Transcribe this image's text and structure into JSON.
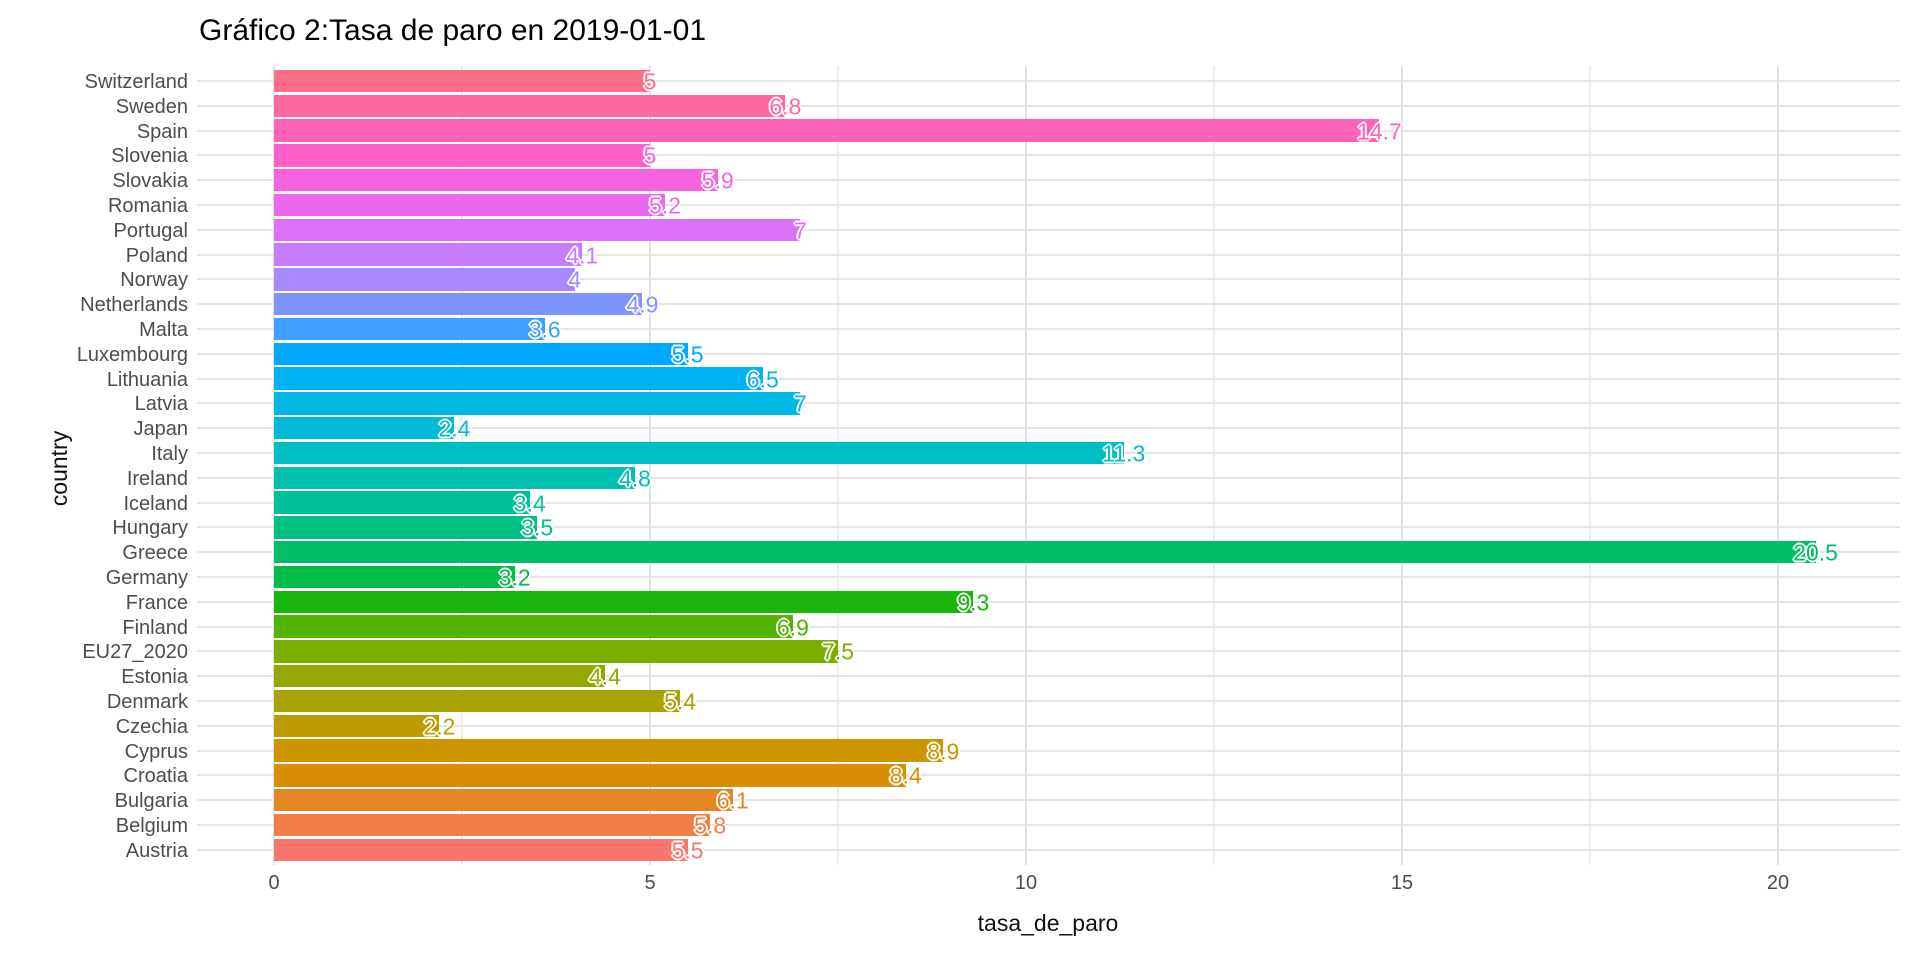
{
  "title": "Gráfico 2:Tasa de paro en 2019-01-01",
  "chart_data": {
    "type": "bar",
    "orientation": "horizontal",
    "title": "Gráfico 2:Tasa de paro en 2019-01-01",
    "xlabel": "tasa_de_paro",
    "ylabel": "country",
    "xlim": [
      0,
      21.5
    ],
    "x_major_ticks": [
      0,
      5,
      10,
      15,
      20
    ],
    "x_minor_ticks": [
      2.5,
      7.5,
      12.5,
      17.5
    ],
    "grid": true,
    "legend": "none",
    "bars_top_to_bottom": [
      {
        "country": "Switzerland",
        "value": 5.0,
        "label": "5",
        "color": "#FC6E87"
      },
      {
        "country": "Sweden",
        "value": 6.8,
        "label": "6.8",
        "color": "#FF68A1"
      },
      {
        "country": "Spain",
        "value": 14.7,
        "label": "14.7",
        "color": "#FF63B7"
      },
      {
        "country": "Slovenia",
        "value": 5.0,
        "label": "5",
        "color": "#FF61CC"
      },
      {
        "country": "Slovakia",
        "value": 5.9,
        "label": "5.9",
        "color": "#F763DE"
      },
      {
        "country": "Romania",
        "value": 5.2,
        "label": "5.2",
        "color": "#EB68ED"
      },
      {
        "country": "Portugal",
        "value": 7.0,
        "label": "7",
        "color": "#DB71F7"
      },
      {
        "country": "Poland",
        "value": 4.1,
        "label": "4.1",
        "color": "#C77CFF"
      },
      {
        "country": "Norway",
        "value": 4.0,
        "label": "4",
        "color": "#A788FF"
      },
      {
        "country": "Netherlands",
        "value": 4.9,
        "label": "4.9",
        "color": "#7D94FF"
      },
      {
        "country": "Malta",
        "value": 3.6,
        "label": "3.6",
        "color": "#419FFF"
      },
      {
        "country": "Luxembourg",
        "value": 5.5,
        "label": "5.5",
        "color": "#00A9FF"
      },
      {
        "country": "Lithuania",
        "value": 6.5,
        "label": "6.5",
        "color": "#00B1F3"
      },
      {
        "country": "Latvia",
        "value": 7.0,
        "label": "7",
        "color": "#00B7E5"
      },
      {
        "country": "Japan",
        "value": 2.4,
        "label": "2.4",
        "color": "#00BBD5"
      },
      {
        "country": "Italy",
        "value": 11.3,
        "label": "11.3",
        "color": "#00BFC4"
      },
      {
        "country": "Ireland",
        "value": 4.8,
        "label": "4.8",
        "color": "#00C0AF"
      },
      {
        "country": "Iceland",
        "value": 3.4,
        "label": "3.4",
        "color": "#00C09A"
      },
      {
        "country": "Hungary",
        "value": 3.5,
        "label": "3.5",
        "color": "#00BF82"
      },
      {
        "country": "Greece",
        "value": 20.5,
        "label": "20.5",
        "color": "#00BD66"
      },
      {
        "country": "Germany",
        "value": 3.2,
        "label": "3.2",
        "color": "#00BB44"
      },
      {
        "country": "France",
        "value": 9.3,
        "label": "9.3",
        "color": "#18B609"
      },
      {
        "country": "Finland",
        "value": 6.9,
        "label": "6.9",
        "color": "#52B300"
      },
      {
        "country": "EU27_2020",
        "value": 7.5,
        "label": "7.5",
        "color": "#7CAE00"
      },
      {
        "country": "Estonia",
        "value": 4.4,
        "label": "4.4",
        "color": "#94A800"
      },
      {
        "country": "Denmark",
        "value": 5.4,
        "label": "5.4",
        "color": "#AAA200"
      },
      {
        "country": "Czechia",
        "value": 2.2,
        "label": "2.2",
        "color": "#BC9C00"
      },
      {
        "country": "Cyprus",
        "value": 8.9,
        "label": "8.9",
        "color": "#CC9500"
      },
      {
        "country": "Croatia",
        "value": 8.4,
        "label": "8.4",
        "color": "#DA8E06"
      },
      {
        "country": "Bulgaria",
        "value": 6.1,
        "label": "6.1",
        "color": "#E58624"
      },
      {
        "country": "Belgium",
        "value": 5.8,
        "label": "5.8",
        "color": "#EF7E47"
      },
      {
        "country": "Austria",
        "value": 5.5,
        "label": "5.5",
        "color": "#F8766D"
      }
    ]
  }
}
